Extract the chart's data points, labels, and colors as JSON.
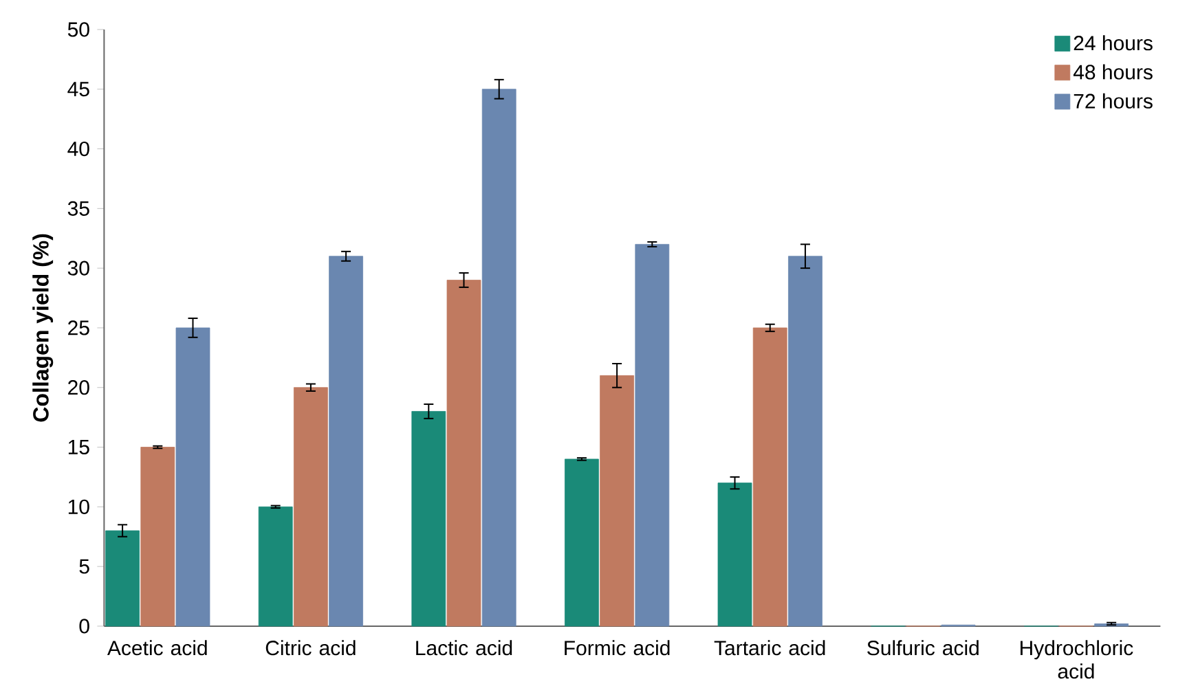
{
  "chart_data": {
    "type": "bar",
    "ylabel": "Collagen yield (%)",
    "categories": [
      "Acetic acid",
      "Citric acid",
      "Lactic acid",
      "Formic acid",
      "Tartaric acid",
      "Sulfuric acid",
      "Hydrochloric acid"
    ],
    "series": [
      {
        "name": "24 hours",
        "color": "#1a8a78",
        "values": [
          8,
          10,
          18,
          14,
          12,
          0,
          0
        ],
        "errors": [
          0.5,
          0.1,
          0.6,
          0.1,
          0.5,
          null,
          null
        ]
      },
      {
        "name": "48 hours",
        "color": "#c07a60",
        "values": [
          15,
          20,
          29,
          21,
          25,
          0,
          0
        ],
        "errors": [
          0.1,
          0.3,
          0.6,
          1.0,
          0.3,
          null,
          null
        ]
      },
      {
        "name": "72 hours",
        "color": "#6a87b0",
        "values": [
          25,
          31,
          45,
          32,
          31,
          0.1,
          0.2
        ],
        "errors": [
          0.8,
          0.4,
          0.8,
          0.2,
          1.0,
          null,
          0.1
        ]
      }
    ],
    "ylim": [
      0,
      50
    ],
    "yticks": [
      0,
      5,
      10,
      15,
      20,
      25,
      30,
      35,
      40,
      45,
      50
    ],
    "grid": false,
    "legend": "top right"
  }
}
